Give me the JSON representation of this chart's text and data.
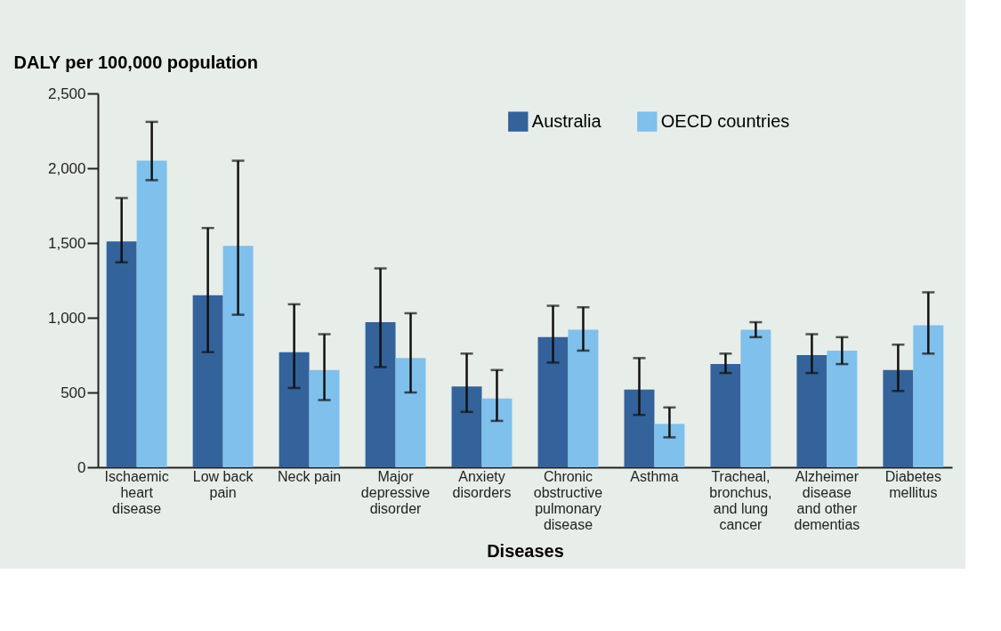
{
  "chart_data": {
    "type": "bar",
    "ylabel": "DALY per 100,000 population",
    "xlabel": "Diseases",
    "categories": [
      "Ischaemic heart disease",
      "Low back pain",
      "Neck pain",
      "Major depressive disorder",
      "Anxiety disorders",
      "Chronic obstructive pulmonary disease",
      "Asthma",
      "Tracheal, bronchus, and lung cancer",
      "Alzheimer disease and other dementias",
      "Diabetes mellitus"
    ],
    "series": [
      {
        "name": "Australia",
        "color": "#34629a",
        "values": [
          1510,
          1150,
          770,
          970,
          540,
          870,
          520,
          690,
          750,
          650
        ],
        "errors": [
          [
            1370,
            1800
          ],
          [
            770,
            1600
          ],
          [
            530,
            1090
          ],
          [
            670,
            1330
          ],
          [
            370,
            760
          ],
          [
            700,
            1080
          ],
          [
            350,
            730
          ],
          [
            630,
            760
          ],
          [
            630,
            890
          ],
          [
            510,
            820
          ]
        ]
      },
      {
        "name": "OECD countries",
        "color": "#7fc0ec",
        "values": [
          2050,
          1480,
          650,
          730,
          460,
          920,
          290,
          920,
          780,
          950
        ],
        "errors": [
          [
            1920,
            2310
          ],
          [
            1020,
            2050
          ],
          [
            450,
            890
          ],
          [
            500,
            1030
          ],
          [
            310,
            650
          ],
          [
            780,
            1070
          ],
          [
            200,
            400
          ],
          [
            870,
            970
          ],
          [
            690,
            870
          ],
          [
            760,
            1170
          ]
        ]
      }
    ],
    "ylim": [
      0,
      2500
    ],
    "yticks": [
      0,
      {
        "value": 500,
        "label": "500"
      },
      {
        "value": 1000,
        "label": "1,000"
      },
      {
        "value": 1500,
        "label": "1,500"
      },
      {
        "value": 2000,
        "label": "2,000"
      },
      {
        "value": 2500,
        "label": "2,500"
      }
    ],
    "legend": "top right",
    "grid": false
  }
}
